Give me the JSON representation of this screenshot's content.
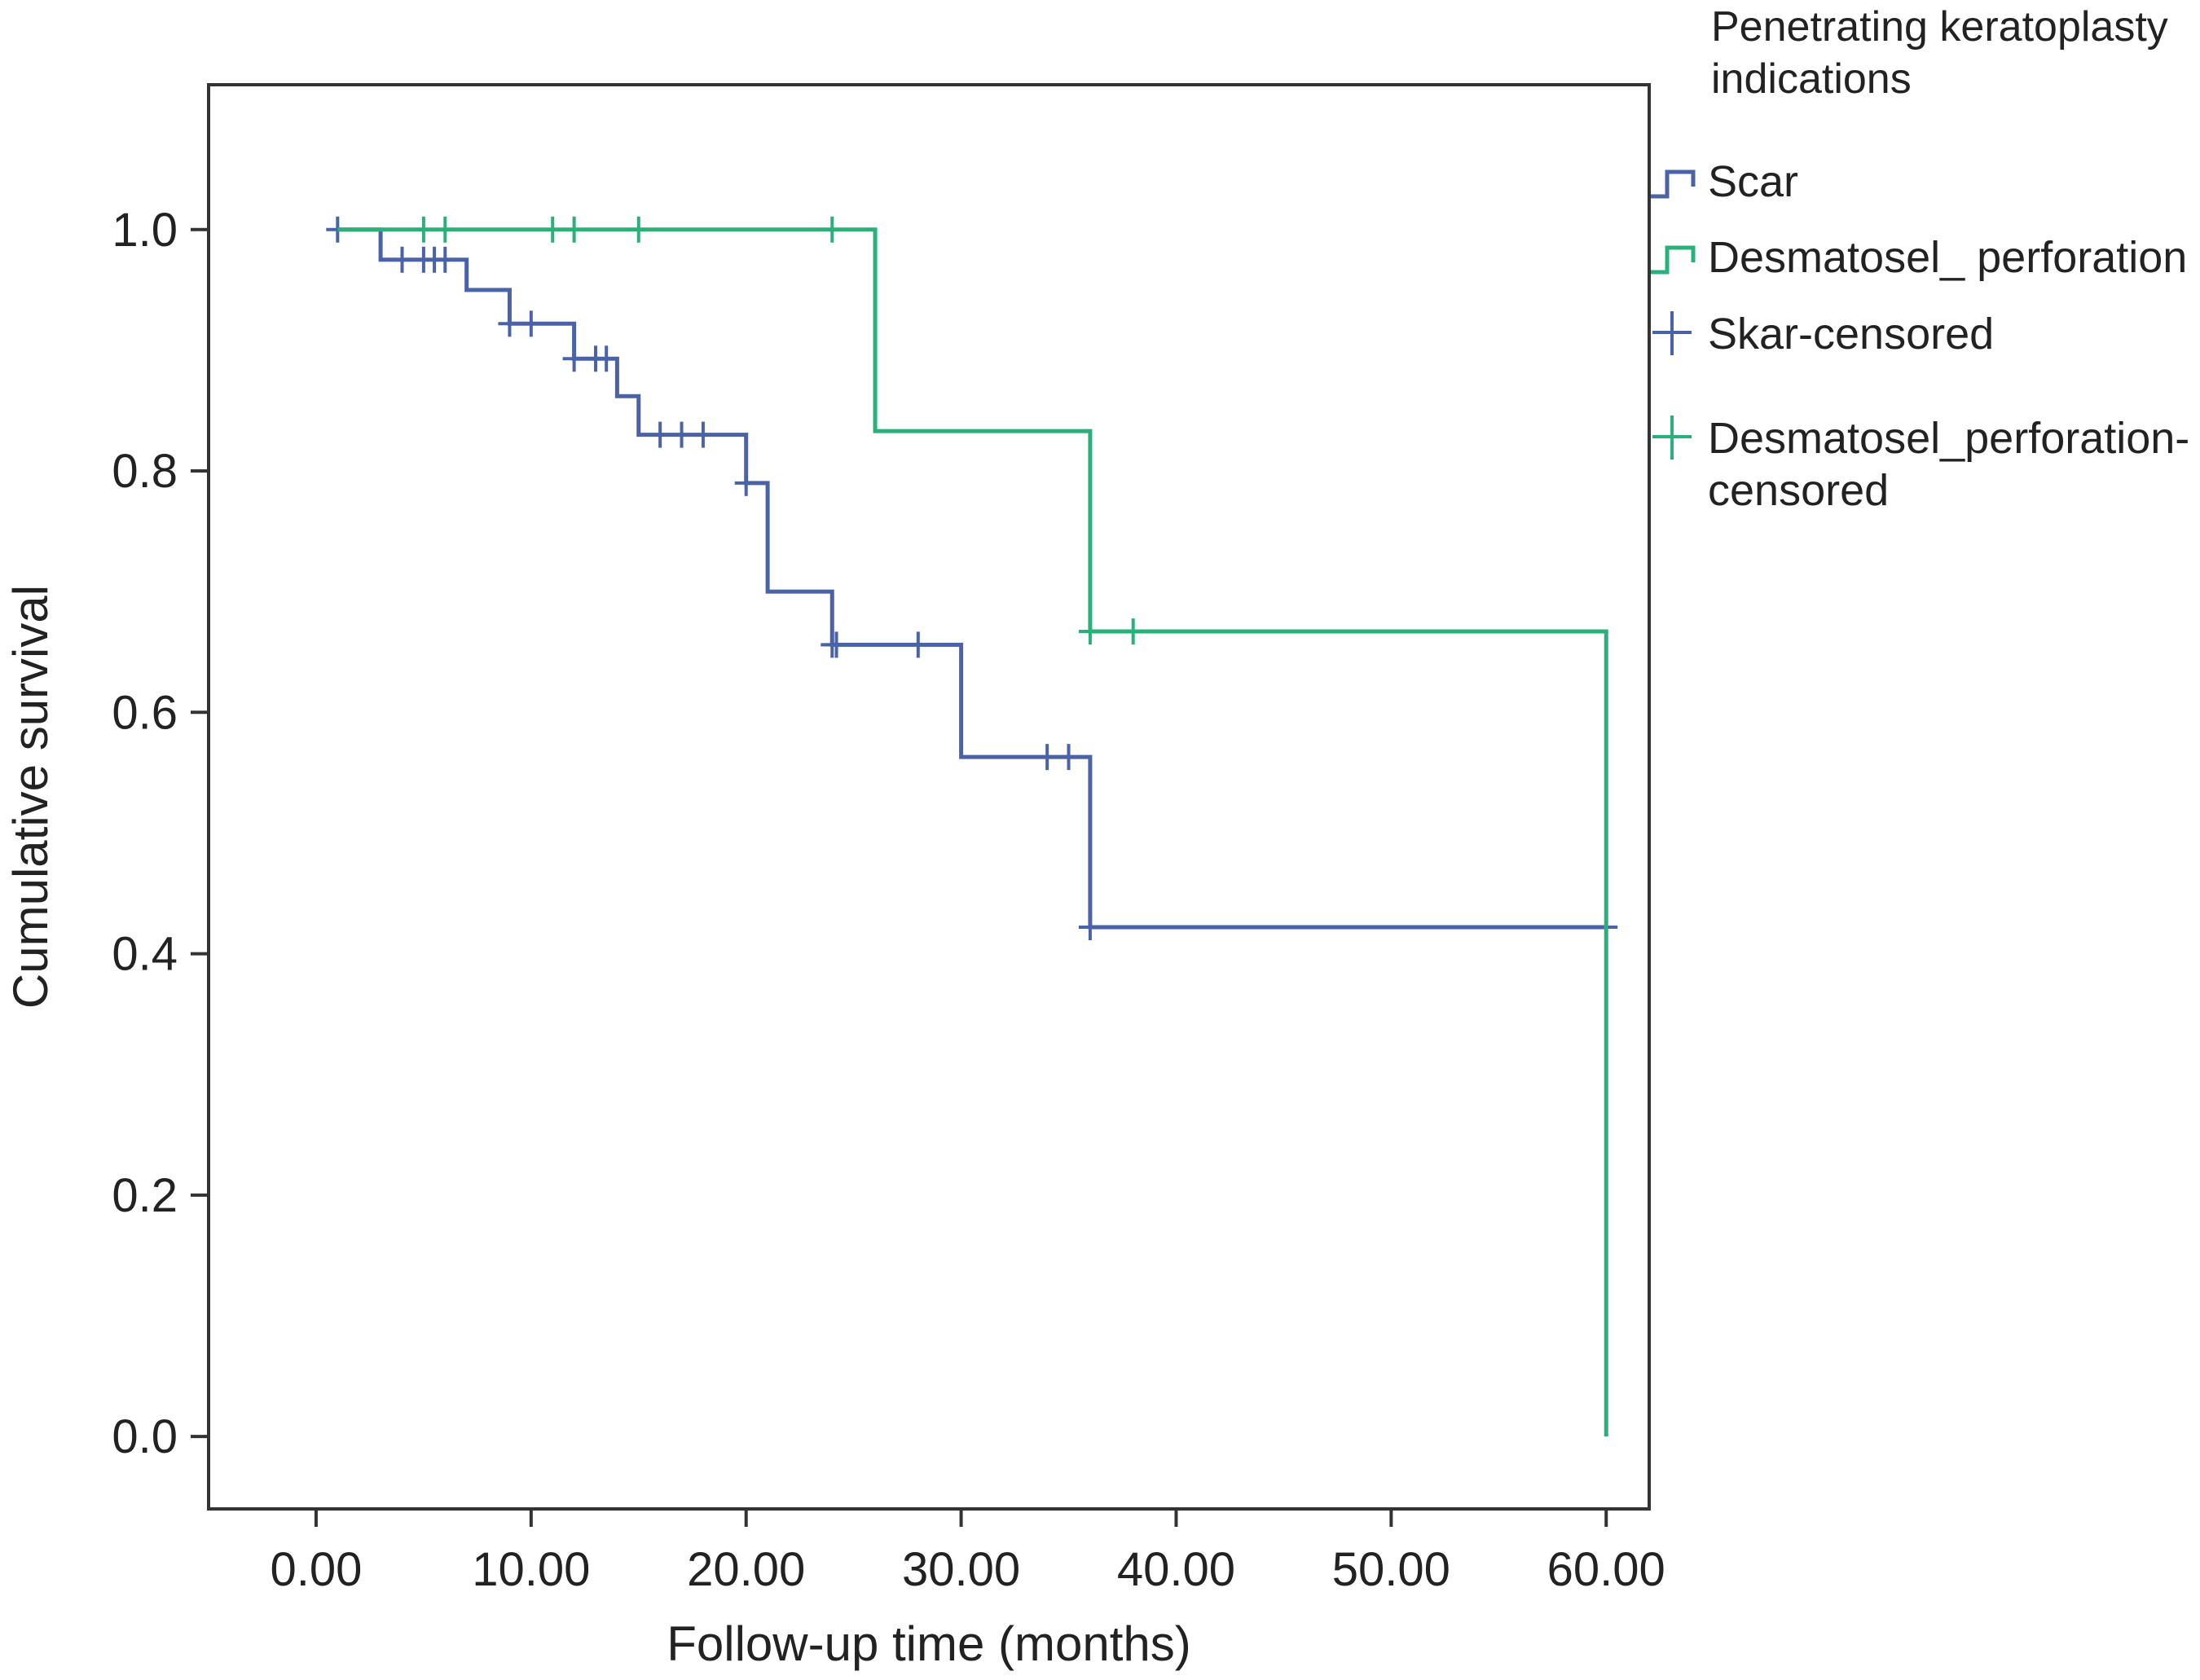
{
  "chart_data": {
    "type": "line",
    "subtype": "kaplan-meier step",
    "xlabel": "Follow-up time (months)",
    "ylabel": "Cumulative survival",
    "xlim": [
      -5,
      62
    ],
    "ylim": [
      -0.06,
      1.12
    ],
    "x_ticks": [
      0,
      10,
      20,
      30,
      40,
      50,
      60
    ],
    "x_tick_labels": [
      "0.00",
      "10.00",
      "20.00",
      "30.00",
      "40.00",
      "50.00",
      "60.00"
    ],
    "y_ticks": [
      0,
      0.2,
      0.4,
      0.6,
      0.8,
      1.0
    ],
    "y_tick_labels": [
      "0.0",
      "0.2",
      "0.4",
      "0.6",
      "0.8",
      "1.0"
    ],
    "grid": false,
    "legend": {
      "title_lines": [
        "Penetrating keratoplasty",
        "indications"
      ],
      "position": "right-outside",
      "entries": [
        {
          "label_lines": [
            "Scar"
          ],
          "marker": "step",
          "color": "#4a63a8"
        },
        {
          "label_lines": [
            "Desmatosel_ perforation"
          ],
          "marker": "step",
          "color": "#2bb07a"
        },
        {
          "label_lines": [
            "Skar-censored"
          ],
          "marker": "plus",
          "color": "#4a63a8"
        },
        {
          "label_lines": [
            "Desmatosel_perforation-",
            "censored"
          ],
          "marker": "plus",
          "color": "#2bb07a"
        }
      ]
    },
    "series": [
      {
        "name": "Scar",
        "color": "#4a63a8",
        "steps": [
          [
            1,
            1.0
          ],
          [
            3,
            0.975
          ],
          [
            7,
            0.95
          ],
          [
            9,
            0.922
          ],
          [
            12,
            0.893
          ],
          [
            14,
            0.862
          ],
          [
            15,
            0.83
          ],
          [
            20,
            0.79
          ],
          [
            21,
            0.7
          ],
          [
            24,
            0.656
          ],
          [
            30,
            0.563
          ],
          [
            36,
            0.422
          ],
          [
            60,
            0.422
          ]
        ],
        "censored": [
          [
            1,
            1.0
          ],
          [
            4,
            0.975
          ],
          [
            5,
            0.975
          ],
          [
            5.5,
            0.975
          ],
          [
            6,
            0.975
          ],
          [
            9,
            0.922
          ],
          [
            10,
            0.922
          ],
          [
            12,
            0.893
          ],
          [
            13,
            0.893
          ],
          [
            13.5,
            0.893
          ],
          [
            16,
            0.83
          ],
          [
            17,
            0.83
          ],
          [
            18,
            0.83
          ],
          [
            20,
            0.79
          ],
          [
            24,
            0.656
          ],
          [
            24.2,
            0.656
          ],
          [
            28,
            0.656
          ],
          [
            34,
            0.563
          ],
          [
            35,
            0.563
          ],
          [
            36,
            0.422
          ],
          [
            60,
            0.422
          ]
        ]
      },
      {
        "name": "Desmatosel_ perforation",
        "color": "#2bb07a",
        "steps": [
          [
            1,
            1.0
          ],
          [
            26,
            0.833
          ],
          [
            36,
            0.667
          ],
          [
            60,
            0.0
          ]
        ],
        "censored": [
          [
            5,
            1.0
          ],
          [
            6,
            1.0
          ],
          [
            11,
            1.0
          ],
          [
            12,
            1.0
          ],
          [
            15,
            1.0
          ],
          [
            24,
            1.0
          ],
          [
            36,
            0.667
          ],
          [
            38,
            0.667
          ]
        ]
      }
    ]
  }
}
